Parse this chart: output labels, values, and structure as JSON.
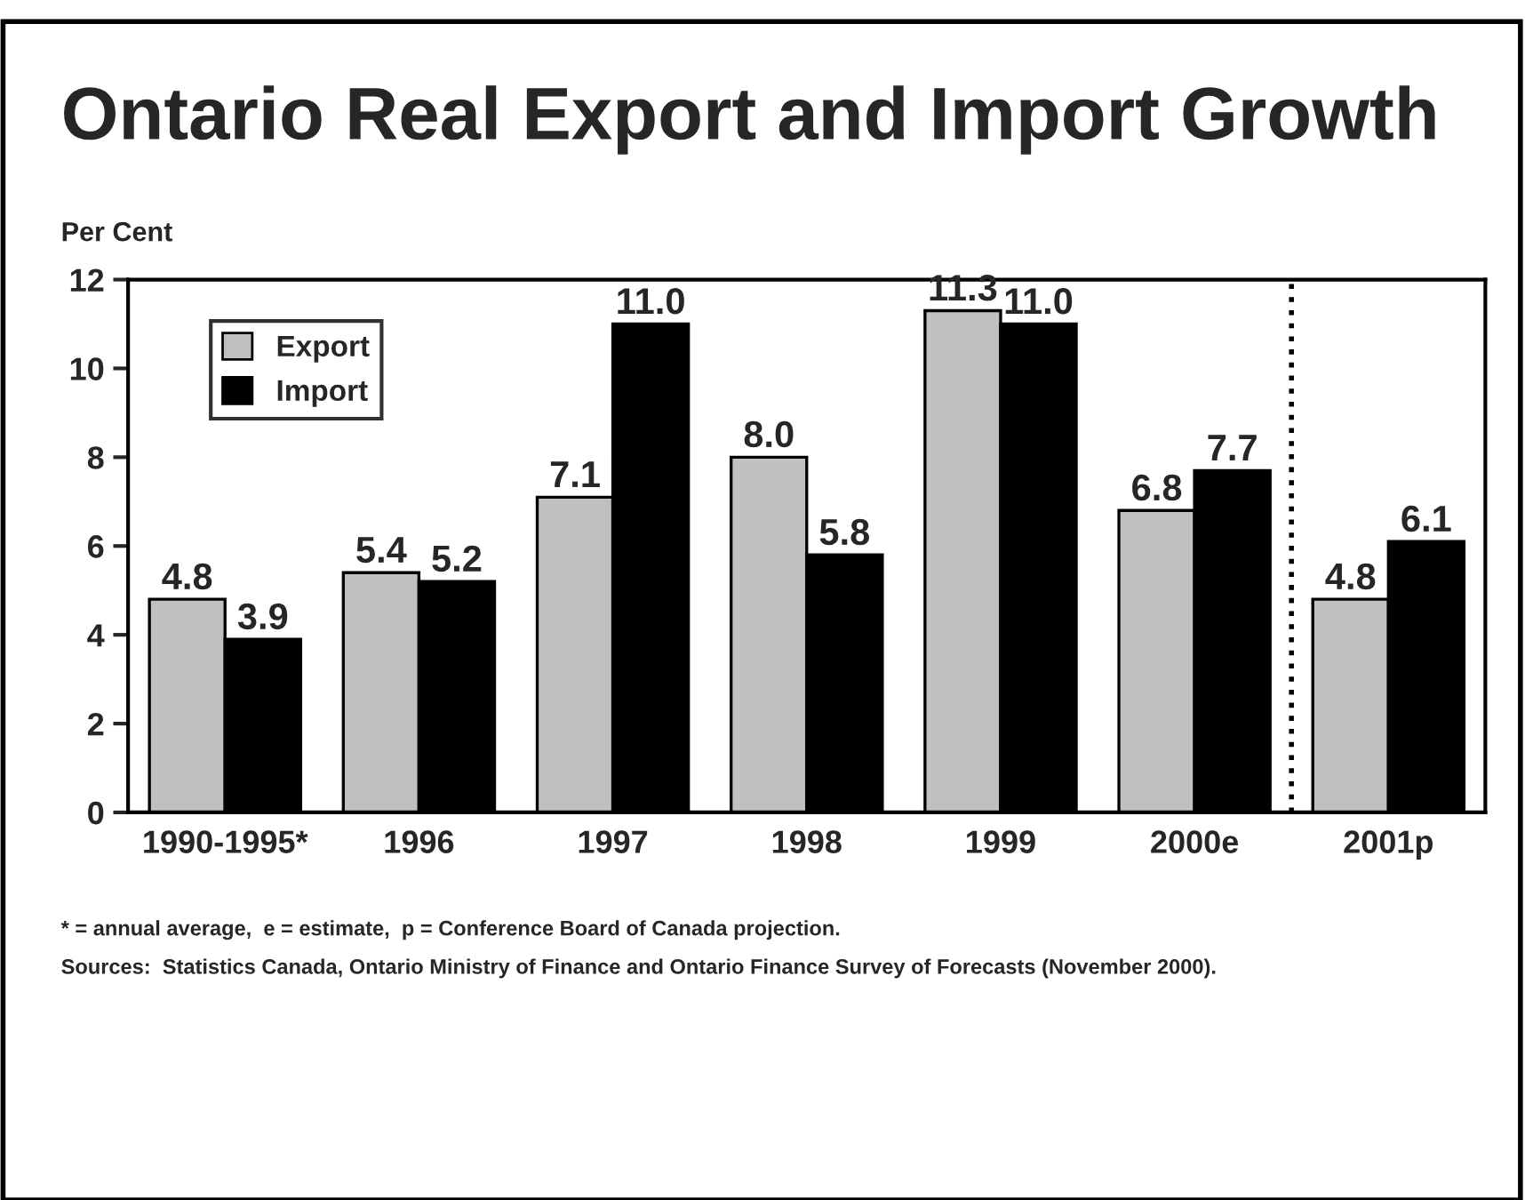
{
  "chart_data": {
    "type": "bar",
    "title": "Ontario Real Export and Import Growth",
    "ylabel": "Per Cent",
    "categories": [
      "1990-1995*",
      "1996",
      "1997",
      "1998",
      "1999",
      "2000e",
      "2001p"
    ],
    "series": [
      {
        "name": "Export",
        "color": "#c0c0c0",
        "values": [
          4.8,
          5.4,
          7.1,
          8.0,
          11.3,
          6.8,
          4.8
        ],
        "value_labels": [
          "4.8",
          "5.4",
          "7.1",
          "8.0",
          "11.3",
          "6.8",
          "4.8"
        ]
      },
      {
        "name": "Import",
        "color": "#000000",
        "values": [
          3.9,
          5.2,
          11.0,
          5.8,
          11.0,
          7.7,
          6.1
        ],
        "value_labels": [
          "3.9",
          "5.2",
          "11.0",
          "5.8",
          "11.0",
          "7.7",
          "6.1"
        ]
      }
    ],
    "ylim": [
      0,
      12
    ],
    "yticks": [
      0,
      2,
      4,
      6,
      8,
      10,
      12
    ],
    "grid": false,
    "legend": "top left",
    "annotations": [
      "* = annual average,  e = estimate,  p = Conference Board of Canada projection.",
      "Sources:  Statistics Canada, Ontario Ministry of Finance and Ontario Finance Survey of Forecasts (November 2000)."
    ]
  }
}
